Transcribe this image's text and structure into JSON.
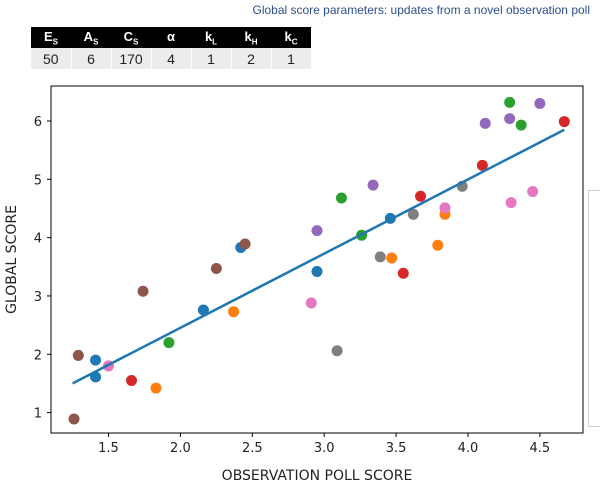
{
  "title": "Global score parameters: updates from a novel observation poll",
  "params": {
    "headers": [
      {
        "base": "E",
        "sub": "S"
      },
      {
        "base": "A",
        "sub": "S"
      },
      {
        "base": "C",
        "sub": "S"
      },
      {
        "base": "α",
        "sub": ""
      },
      {
        "base": "k",
        "sub": "L"
      },
      {
        "base": "k",
        "sub": "H"
      },
      {
        "base": "k",
        "sub": "C"
      }
    ],
    "values": [
      "50",
      "6",
      "170",
      "4",
      "1",
      "2",
      "1"
    ]
  },
  "chart_data": {
    "type": "scatter",
    "xlabel": "OBSERVATION POLL SCORE",
    "ylabel": "GLOBAL SCORE",
    "xlim": [
      1.1,
      4.8
    ],
    "ylim": [
      0.65,
      6.6
    ],
    "xticks": [
      "1.5",
      "2.0",
      "2.5",
      "3.0",
      "3.5",
      "4.0",
      "4.5"
    ],
    "yticks": [
      "1",
      "2",
      "3",
      "4",
      "5",
      "6"
    ],
    "grid": false,
    "legend": "none",
    "trendline": {
      "x": [
        1.25,
        4.67
      ],
      "y": [
        1.5,
        5.85
      ],
      "color": "#1f77b4"
    },
    "points": [
      {
        "x": 1.26,
        "y": 0.89,
        "color": "#8c564b"
      },
      {
        "x": 1.29,
        "y": 1.98,
        "color": "#8c564b"
      },
      {
        "x": 1.41,
        "y": 1.9,
        "color": "#1f77b4"
      },
      {
        "x": 1.41,
        "y": 1.61,
        "color": "#1f77b4"
      },
      {
        "x": 1.5,
        "y": 1.8,
        "color": "#e377c2"
      },
      {
        "x": 1.66,
        "y": 1.55,
        "color": "#d62728"
      },
      {
        "x": 1.74,
        "y": 3.08,
        "color": "#8c564b"
      },
      {
        "x": 1.83,
        "y": 1.42,
        "color": "#ff7f0e"
      },
      {
        "x": 1.92,
        "y": 2.2,
        "color": "#2ca02c"
      },
      {
        "x": 2.16,
        "y": 2.76,
        "color": "#1f77b4"
      },
      {
        "x": 2.25,
        "y": 3.47,
        "color": "#8c564b"
      },
      {
        "x": 2.37,
        "y": 2.73,
        "color": "#ff7f0e"
      },
      {
        "x": 2.42,
        "y": 3.83,
        "color": "#1f77b4"
      },
      {
        "x": 2.45,
        "y": 3.89,
        "color": "#8c564b"
      },
      {
        "x": 2.91,
        "y": 2.88,
        "color": "#e377c2"
      },
      {
        "x": 2.95,
        "y": 3.42,
        "color": "#1f77b4"
      },
      {
        "x": 2.95,
        "y": 4.12,
        "color": "#9467bd"
      },
      {
        "x": 3.09,
        "y": 2.06,
        "color": "#7f7f7f"
      },
      {
        "x": 3.12,
        "y": 4.68,
        "color": "#2ca02c"
      },
      {
        "x": 3.26,
        "y": 4.04,
        "color": "#2ca02c"
      },
      {
        "x": 3.34,
        "y": 4.9,
        "color": "#9467bd"
      },
      {
        "x": 3.39,
        "y": 3.67,
        "color": "#7f7f7f"
      },
      {
        "x": 3.46,
        "y": 4.33,
        "color": "#1f77b4"
      },
      {
        "x": 3.47,
        "y": 3.65,
        "color": "#ff7f0e"
      },
      {
        "x": 3.55,
        "y": 3.39,
        "color": "#d62728"
      },
      {
        "x": 3.62,
        "y": 4.4,
        "color": "#7f7f7f"
      },
      {
        "x": 3.67,
        "y": 4.71,
        "color": "#d62728"
      },
      {
        "x": 3.79,
        "y": 3.87,
        "color": "#ff7f0e"
      },
      {
        "x": 3.84,
        "y": 4.4,
        "color": "#ff7f0e"
      },
      {
        "x": 3.84,
        "y": 4.51,
        "color": "#e377c2"
      },
      {
        "x": 3.96,
        "y": 4.88,
        "color": "#7f7f7f"
      },
      {
        "x": 4.1,
        "y": 5.24,
        "color": "#d62728"
      },
      {
        "x": 4.12,
        "y": 5.96,
        "color": "#9467bd"
      },
      {
        "x": 4.29,
        "y": 6.04,
        "color": "#9467bd"
      },
      {
        "x": 4.29,
        "y": 6.32,
        "color": "#2ca02c"
      },
      {
        "x": 4.3,
        "y": 4.6,
        "color": "#e377c2"
      },
      {
        "x": 4.37,
        "y": 5.93,
        "color": "#2ca02c"
      },
      {
        "x": 4.45,
        "y": 4.79,
        "color": "#e377c2"
      },
      {
        "x": 4.5,
        "y": 6.3,
        "color": "#9467bd"
      },
      {
        "x": 4.67,
        "y": 5.99,
        "color": "#d62728"
      }
    ]
  }
}
